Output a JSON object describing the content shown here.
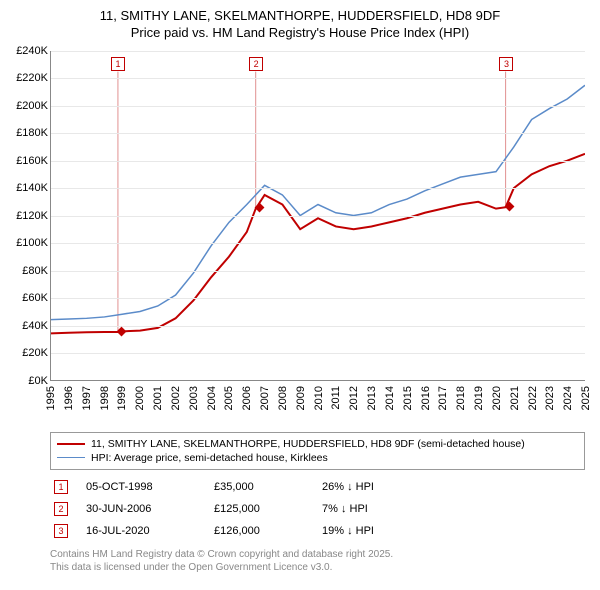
{
  "title_line1": "11, SMITHY LANE, SKELMANTHORPE, HUDDERSFIELD, HD8 9DF",
  "title_line2": "Price paid vs. HM Land Registry's House Price Index (HPI)",
  "chart": {
    "type": "line",
    "ylim": [
      0,
      240000
    ],
    "ytick_step": 20000,
    "y_format": "£{v}K",
    "x_years": [
      1995,
      1996,
      1997,
      1998,
      1999,
      2000,
      2001,
      2002,
      2003,
      2004,
      2005,
      2006,
      2007,
      2008,
      2009,
      2010,
      2011,
      2012,
      2013,
      2014,
      2015,
      2016,
      2017,
      2018,
      2019,
      2020,
      2021,
      2022,
      2023,
      2024,
      2025
    ],
    "background_color": "#ffffff",
    "grid_color": "#e8e8e8",
    "series": [
      {
        "name": "price_paid",
        "label": "11, SMITHY LANE, SKELMANTHORPE, HUDDERSFIELD, HD8 9DF (semi-detached house)",
        "color": "#c00000",
        "width": 2,
        "points": [
          [
            1995,
            34000
          ],
          [
            1996,
            34500
          ],
          [
            1997,
            34800
          ],
          [
            1998,
            35000
          ],
          [
            1998.76,
            35000
          ],
          [
            1999,
            35500
          ],
          [
            2000,
            36000
          ],
          [
            2001,
            38000
          ],
          [
            2002,
            45000
          ],
          [
            2003,
            58000
          ],
          [
            2004,
            75000
          ],
          [
            2005,
            90000
          ],
          [
            2006,
            108000
          ],
          [
            2006.5,
            125000
          ],
          [
            2007,
            135000
          ],
          [
            2008,
            128000
          ],
          [
            2009,
            110000
          ],
          [
            2010,
            118000
          ],
          [
            2011,
            112000
          ],
          [
            2012,
            110000
          ],
          [
            2013,
            112000
          ],
          [
            2014,
            115000
          ],
          [
            2015,
            118000
          ],
          [
            2016,
            122000
          ],
          [
            2017,
            125000
          ],
          [
            2018,
            128000
          ],
          [
            2019,
            130000
          ],
          [
            2020,
            125000
          ],
          [
            2020.54,
            126000
          ],
          [
            2021,
            140000
          ],
          [
            2022,
            150000
          ],
          [
            2023,
            156000
          ],
          [
            2024,
            160000
          ],
          [
            2025,
            165000
          ]
        ]
      },
      {
        "name": "hpi",
        "label": "HPI: Average price, semi-detached house, Kirklees",
        "color": "#5b8bc9",
        "width": 1.5,
        "points": [
          [
            1995,
            44000
          ],
          [
            1996,
            44500
          ],
          [
            1997,
            45000
          ],
          [
            1998,
            46000
          ],
          [
            1999,
            48000
          ],
          [
            2000,
            50000
          ],
          [
            2001,
            54000
          ],
          [
            2002,
            62000
          ],
          [
            2003,
            78000
          ],
          [
            2004,
            98000
          ],
          [
            2005,
            115000
          ],
          [
            2006,
            128000
          ],
          [
            2007,
            142000
          ],
          [
            2008,
            135000
          ],
          [
            2009,
            120000
          ],
          [
            2010,
            128000
          ],
          [
            2011,
            122000
          ],
          [
            2012,
            120000
          ],
          [
            2013,
            122000
          ],
          [
            2014,
            128000
          ],
          [
            2015,
            132000
          ],
          [
            2016,
            138000
          ],
          [
            2017,
            143000
          ],
          [
            2018,
            148000
          ],
          [
            2019,
            150000
          ],
          [
            2020,
            152000
          ],
          [
            2021,
            170000
          ],
          [
            2022,
            190000
          ],
          [
            2023,
            198000
          ],
          [
            2024,
            205000
          ],
          [
            2025,
            215000
          ]
        ]
      }
    ],
    "markers": [
      {
        "n": "1",
        "x": 1998.76,
        "y": 35000,
        "box_y": 225000
      },
      {
        "n": "2",
        "x": 2006.5,
        "y": 125000,
        "box_y": 225000
      },
      {
        "n": "3",
        "x": 2020.54,
        "y": 126000,
        "box_y": 225000
      }
    ],
    "marker_color": "#c00000",
    "marker_line_color": "#e09090"
  },
  "legend": {
    "items": [
      {
        "color": "#c00000",
        "width": 2,
        "key": "chart.series.0.label"
      },
      {
        "color": "#5b8bc9",
        "width": 1.5,
        "key": "chart.series.1.label"
      }
    ]
  },
  "events": [
    {
      "n": "1",
      "date": "05-OCT-1998",
      "price": "£35,000",
      "delta": "26% ↓ HPI"
    },
    {
      "n": "2",
      "date": "30-JUN-2006",
      "price": "£125,000",
      "delta": "7% ↓ HPI"
    },
    {
      "n": "3",
      "date": "16-JUL-2020",
      "price": "£126,000",
      "delta": "19% ↓ HPI"
    }
  ],
  "footer_line1": "Contains HM Land Registry data © Crown copyright and database right 2025.",
  "footer_line2": "This data is licensed under the Open Government Licence v3.0."
}
